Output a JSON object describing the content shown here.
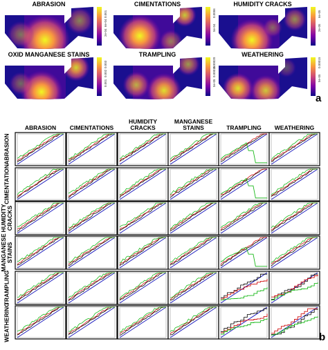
{
  "heatmaps": {
    "panel_label": "a",
    "panels": [
      {
        "title": "ABRASION",
        "scale_ticks": [
          "0.001",
          "6e-04",
          "2e-04"
        ]
      },
      {
        "title": "CIMENTATIONS",
        "scale_ticks": [
          "0.0006",
          "5e-04"
        ]
      },
      {
        "title": "HUMIDITY CRACKS",
        "scale_ticks": [
          "6e-05",
          "2e-05"
        ]
      },
      {
        "title": "OXID MANGANESE  STAINS",
        "scale_ticks": [
          "0.003",
          "0.002",
          "0.001"
        ]
      },
      {
        "title": "TRAMPLING",
        "scale_ticks": [
          "0.00020",
          "0.00015",
          "5e-05"
        ]
      },
      {
        "title": "WEATHERING",
        "scale_ticks": [
          "0.00015",
          "5e-05"
        ]
      }
    ],
    "colormap": [
      "#0d0887",
      "#7e03a8",
      "#cc4778",
      "#f89540",
      "#f0f921"
    ]
  },
  "chart_data": {
    "type": "line",
    "panel_label": "b",
    "categories": [
      "ABRASION",
      "CIMENTATIONS",
      "HUMIDITY CRACKS",
      "MANGANESE STAINS",
      "TRAMPLING",
      "WEATHERING"
    ],
    "column_headers": [
      "ABRASION",
      "CIMENTATIONS",
      "HUMIDITY\nCRACKS",
      "MANGANESE\nSTAINS",
      "TRAMPLING",
      "WEATHERING"
    ],
    "row_headers": [
      "ABRASION",
      "CIMENTATION",
      "HUMIDITY\nCRACKS",
      "MANGANESE\nSTAINS",
      "TRAMPLING",
      "WEATHERING"
    ],
    "series_colors": {
      "reference": "#1f1fbf",
      "black": "#000000",
      "red": "#d01010",
      "green": "#18b818"
    },
    "cell_style": [
      "cumulative",
      "cumulative",
      "cumulative",
      "cumulative",
      "drop",
      "cumulative",
      "cumulative",
      "cumulative",
      "cumulative",
      "cumulative",
      "drop",
      "cumulative",
      "cumulative",
      "cumulative",
      "cumulative",
      "cumulative",
      "cumulative",
      "cumulative",
      "cumulative",
      "cumulative",
      "cumulative",
      "cumulative",
      "drop",
      "cumulative",
      "cumulative",
      "cumulative",
      "cumulative",
      "cumulative",
      "step",
      "step",
      "cumulative",
      "cumulative",
      "cumulative",
      "cumulative",
      "step",
      "step"
    ]
  }
}
